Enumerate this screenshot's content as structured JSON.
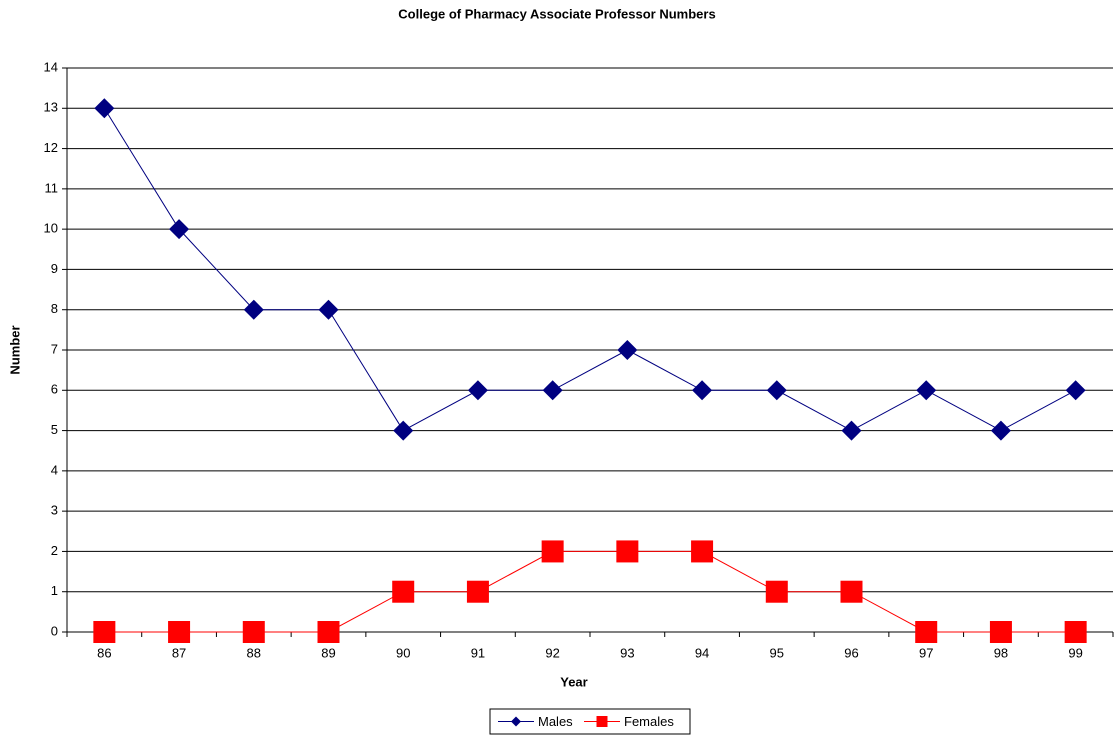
{
  "chart_data": {
    "type": "line",
    "title": "College of Pharmacy Associate Professor Numbers",
    "x_label": "Year",
    "y_label": "Number",
    "categories": [
      "86",
      "87",
      "88",
      "89",
      "90",
      "91",
      "92",
      "93",
      "94",
      "95",
      "96",
      "97",
      "98",
      "99"
    ],
    "series": [
      {
        "name": "Males",
        "color": "#000080",
        "marker": "diamond",
        "values": [
          13,
          10,
          8,
          8,
          5,
          6,
          6,
          7,
          6,
          6,
          5,
          6,
          5,
          6
        ]
      },
      {
        "name": "Females",
        "color": "#ff0000",
        "marker": "square",
        "values": [
          0,
          0,
          0,
          0,
          1,
          1,
          2,
          2,
          2,
          1,
          1,
          0,
          0,
          0
        ]
      }
    ],
    "ylim": [
      0,
      14
    ],
    "yticks": [
      0,
      1,
      2,
      3,
      4,
      5,
      6,
      7,
      8,
      9,
      10,
      11,
      12,
      13,
      14
    ],
    "grid": true,
    "legend": "bottom"
  }
}
